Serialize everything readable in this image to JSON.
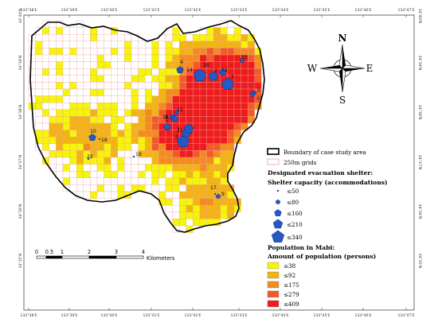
{
  "axes": {
    "top_lon_labels": [
      "133°38'E",
      "133°39'E",
      "133°40'E",
      "133°41'E",
      "133°42'E",
      "133°43'E",
      "133°44'E",
      "133°45'E",
      "133°46'E",
      "133°47'E"
    ],
    "bottom_lon_labels": [
      "133°38'E",
      "133°39'E",
      "133°40'E",
      "133°41'E",
      "133°42'E",
      "133°43'E",
      "133°44'E",
      "133°45'E",
      "133°46'E",
      "133°47'E"
    ],
    "left_lat_labels": [
      "34°40'N",
      "34°39'N",
      "34°38'N",
      "34°37'N",
      "34°36'N",
      "34°35'N"
    ],
    "right_lat_labels": [
      "34°40'N",
      "34°39'N",
      "34°38'N",
      "34°37'N",
      "34°36'N",
      "34°35'N"
    ]
  },
  "compass": {
    "n": "N",
    "s": "S",
    "e": "E",
    "w": "W"
  },
  "scale_bar": {
    "ticks": [
      "0",
      "0.5",
      "1",
      "2",
      "3",
      "4"
    ],
    "unit": "Kilometers"
  },
  "legend": {
    "boundary": "Boundary of case study area",
    "grids": "250m grids",
    "shelter_title": "Designated evacuation shelter:",
    "shelter_subtitle": "Shelter capacity (accommodations)",
    "shelter_classes": [
      "≤50",
      "≤80",
      "≤160",
      "≤210",
      "≤340"
    ],
    "population_title": "Population in Mabi:",
    "population_subtitle": "Amount of population (persons)",
    "population_classes": [
      "≤38",
      "≤92",
      "≤175",
      "≤279",
      "≤409"
    ],
    "population_colors": [
      "#f5f50a",
      "#f2b414",
      "#f28c1e",
      "#f25a28",
      "#ee1c1c"
    ]
  },
  "shelters": [
    {
      "id": "1",
      "cap_class": 1
    },
    {
      "id": "2",
      "cap_class": 3
    },
    {
      "id": "3",
      "cap_class": 4
    },
    {
      "id": "4",
      "cap_class": 2
    },
    {
      "id": "5",
      "cap_class": 2
    },
    {
      "id": "6",
      "cap_class": 4
    },
    {
      "id": "7",
      "cap_class": 3
    },
    {
      "id": "8",
      "cap_class": 2
    },
    {
      "id": "9",
      "cap_class": 1
    },
    {
      "id": "10",
      "cap_class": 2
    },
    {
      "id": "11",
      "cap_class": 1
    },
    {
      "id": "12",
      "cap_class": 2
    },
    {
      "id": "13",
      "cap_class": 1
    },
    {
      "id": "14",
      "cap_class": 0
    },
    {
      "id": "15",
      "cap_class": 1
    },
    {
      "id": "16",
      "cap_class": 1
    },
    {
      "id": "17",
      "cap_class": 0
    },
    {
      "id": "18",
      "cap_class": 0
    },
    {
      "id": "19",
      "cap_class": 0
    },
    {
      "id": "20",
      "cap_class": 4
    },
    {
      "id": "21",
      "cap_class": 3
    },
    {
      "id": "22",
      "cap_class": 0
    }
  ]
}
